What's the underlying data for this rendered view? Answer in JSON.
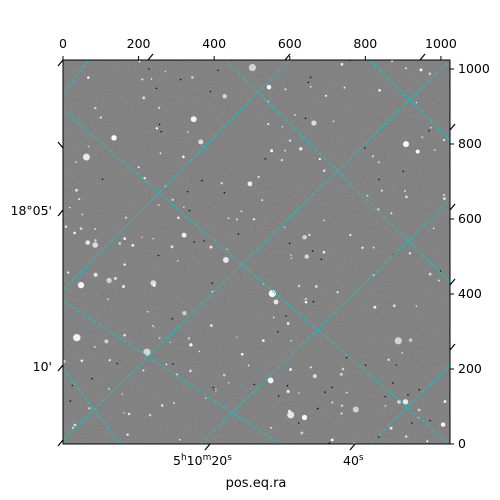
{
  "chart_data": {
    "type": "heatmap",
    "image": "astronomical grayscale star field",
    "xlabel": "pos.eq.ra",
    "ylabel": "",
    "pixel_axes": {
      "x": {
        "range": [
          0,
          1024
        ],
        "ticks": [
          "0",
          "200",
          "400",
          "600",
          "800",
          "1000"
        ],
        "tick_values": [
          0,
          200,
          400,
          600,
          800,
          1000
        ]
      },
      "y": {
        "range": [
          0,
          1024
        ],
        "ticks": [
          "0",
          "200",
          "400",
          "600",
          "800",
          "1000"
        ],
        "tick_values": [
          0,
          200,
          400,
          600,
          800,
          1000
        ]
      }
    },
    "world_axes": {
      "ra": {
        "label": "pos.eq.ra",
        "ticks": [
          {
            "h": "5",
            "m": "10",
            "s": "20",
            "value": "5h10m20s"
          },
          {
            "s": "40",
            "value": "40s"
          }
        ]
      },
      "dec": {
        "ticks": [
          "18°05'",
          "10'"
        ]
      }
    },
    "grid": true,
    "grid_color": "#00d0d0"
  }
}
